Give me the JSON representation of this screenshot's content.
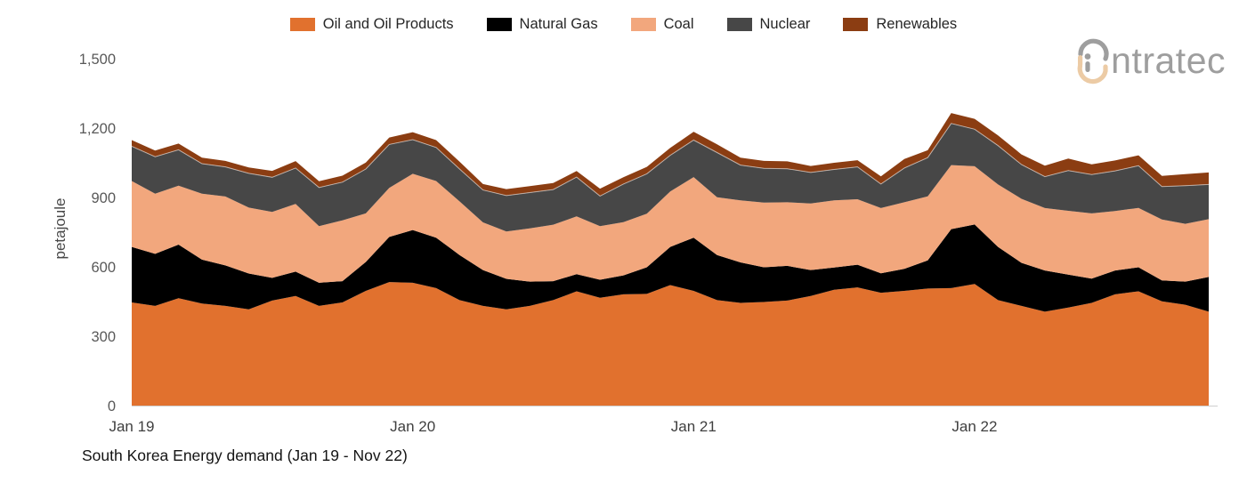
{
  "legend": {
    "items": [
      {
        "id": "oil",
        "label": "Oil and Oil Products",
        "color": "#E1712E"
      },
      {
        "id": "gas",
        "label": "Natural Gas",
        "color": "#000000"
      },
      {
        "id": "coal",
        "label": "Coal",
        "color": "#F2A77D"
      },
      {
        "id": "nuclear",
        "label": "Nuclear",
        "color": "#474747"
      },
      {
        "id": "renewables",
        "label": "Renewables",
        "color": "#8B3D12"
      }
    ]
  },
  "logo": {
    "text": "ntratec",
    "gray": "#9E9E9E",
    "tan": "#ECCBA5"
  },
  "caption": "South Korea Energy demand (Jan 19 - Nov 22)",
  "y_axis": {
    "title": "petajoule",
    "ticks": [
      {
        "value": 0,
        "label": "0"
      },
      {
        "value": 300,
        "label": "300"
      },
      {
        "value": 600,
        "label": "600"
      },
      {
        "value": 900,
        "label": "900"
      },
      {
        "value": 1200,
        "label": "1,200"
      },
      {
        "value": 1500,
        "label": "1,500"
      }
    ]
  },
  "x_axis": {
    "ticks": [
      {
        "month_index": 0,
        "label": "Jan 19"
      },
      {
        "month_index": 12,
        "label": "Jan 20"
      },
      {
        "month_index": 24,
        "label": "Jan 21"
      },
      {
        "month_index": 36,
        "label": "Jan 22"
      }
    ]
  },
  "chart_data": {
    "type": "area",
    "stacked": true,
    "title": "South Korea Energy demand (Jan 19 - Nov 22)",
    "xlabel": "",
    "ylabel": "petajoule",
    "ylim": [
      0,
      1500
    ],
    "grid": false,
    "legend_position": "top-center",
    "x": [
      "Jan 19",
      "Feb 19",
      "Mar 19",
      "Apr 19",
      "May 19",
      "Jun 19",
      "Jul 19",
      "Aug 19",
      "Sep 19",
      "Oct 19",
      "Nov 19",
      "Dec 19",
      "Jan 20",
      "Feb 20",
      "Mar 20",
      "Apr 20",
      "May 20",
      "Jun 20",
      "Jul 20",
      "Aug 20",
      "Sep 20",
      "Oct 20",
      "Nov 20",
      "Dec 20",
      "Jan 21",
      "Feb 21",
      "Mar 21",
      "Apr 21",
      "May 21",
      "Jun 21",
      "Jul 21",
      "Aug 21",
      "Sep 21",
      "Oct 21",
      "Nov 21",
      "Dec 21",
      "Jan 22",
      "Feb 22",
      "Mar 22",
      "Apr 22",
      "May 22",
      "Jun 22",
      "Jul 22",
      "Aug 22",
      "Sep 22",
      "Oct 22",
      "Nov 22"
    ],
    "series": [
      {
        "id": "oil",
        "name": "Oil and Oil Products",
        "color": "#E1712E",
        "values": [
          450,
          435,
          468,
          445,
          435,
          420,
          458,
          478,
          435,
          450,
          500,
          538,
          535,
          512,
          460,
          435,
          420,
          435,
          460,
          498,
          470,
          485,
          487,
          525,
          500,
          460,
          448,
          452,
          458,
          478,
          505,
          515,
          492,
          500,
          510,
          512,
          530,
          460,
          435,
          410,
          428,
          448,
          485,
          498,
          455,
          440,
          410
        ]
      },
      {
        "id": "gas",
        "name": "Natural Gas",
        "color": "#000000",
        "values": [
          240,
          225,
          232,
          190,
          175,
          155,
          98,
          105,
          100,
          92,
          125,
          195,
          228,
          218,
          195,
          155,
          132,
          105,
          82,
          74,
          78,
          82,
          115,
          165,
          230,
          195,
          175,
          150,
          150,
          112,
          96,
          98,
          84,
          95,
          122,
          255,
          257,
          230,
          186,
          178,
          142,
          105,
          103,
          104,
          90,
          100,
          150
        ]
      },
      {
        "id": "coal",
        "name": "Coal",
        "color": "#F2A77D",
        "values": [
          285,
          260,
          255,
          285,
          298,
          285,
          285,
          293,
          245,
          263,
          210,
          212,
          243,
          245,
          232,
          206,
          205,
          230,
          244,
          250,
          232,
          230,
          232,
          240,
          262,
          250,
          268,
          280,
          275,
          288,
          290,
          283,
          282,
          288,
          277,
          277,
          252,
          270,
          277,
          270,
          276,
          282,
          257,
          257,
          264,
          250,
          250
        ]
      },
      {
        "id": "nuclear",
        "name": "Nuclear",
        "color": "#474747",
        "values": [
          150,
          160,
          155,
          130,
          128,
          148,
          150,
          155,
          167,
          165,
          192,
          188,
          148,
          145,
          140,
          140,
          155,
          155,
          152,
          170,
          130,
          165,
          172,
          156,
          160,
          193,
          153,
          148,
          145,
          134,
          134,
          140,
          104,
          148,
          167,
          180,
          160,
          168,
          148,
          136,
          174,
          168,
          174,
          182,
          142,
          165,
          150
        ]
      },
      {
        "id": "renewables",
        "name": "Renewables",
        "color": "#8B3D12",
        "values": [
          27,
          27,
          27,
          26,
          26,
          26,
          28,
          30,
          27,
          28,
          28,
          30,
          32,
          32,
          32,
          26,
          28,
          28,
          28,
          26,
          32,
          29,
          30,
          32,
          36,
          36,
          32,
          32,
          32,
          28,
          29,
          29,
          33,
          39,
          32,
          45,
          45,
          44,
          44,
          47,
          52,
          44,
          45,
          45,
          46,
          50,
          52
        ]
      }
    ]
  }
}
